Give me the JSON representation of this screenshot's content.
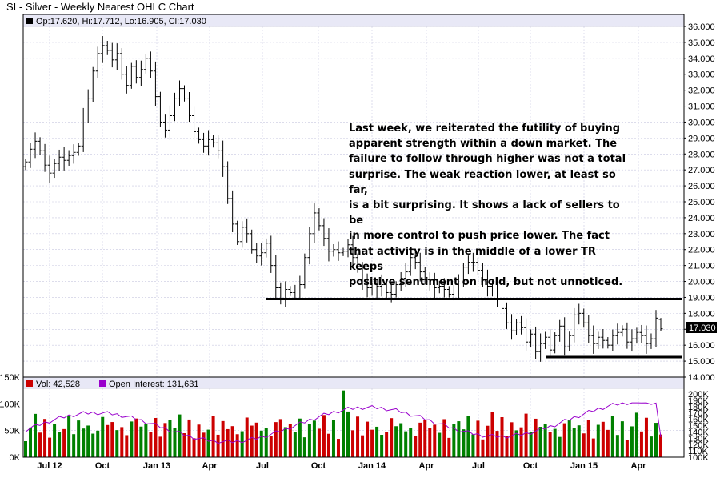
{
  "title": "SI - Silver - Weekly Nearest OHLC Chart",
  "price_legend": "Op:17.620, Hi:17.712, Lo:16.905, Cl:17.030",
  "last_price_label": "17.030",
  "volume_legend": "Vol: 42,528",
  "oi_legend": "Open Interest: 131,631",
  "annotation": "Last week, we reiterated the futility of buying\napparent strength within a down market.  The\nfailure to follow through higher was not a total\nsurprise.  The weak reaction lower, at least so far,\nis a bit surprising.  It shows a lack of sellers to be\nin more control to push price lower.  The fact\nthat activity is in the middle of a lower TR keeps\npositive sentiment on hold, but not unnoticed.",
  "colors": {
    "up_volume": "#008000",
    "down_volume": "#cc0000",
    "open_interest": "#9900cc",
    "price_bar": "#000000",
    "grid": "#c8c8e0"
  },
  "chart_data": [
    {
      "type": "ohlc",
      "name": "SI - Silver - Weekly Nearest OHLC Chart",
      "x_tick_labels": [
        "Jul 12",
        "Oct",
        "Jan 13",
        "Apr",
        "Jul",
        "Oct",
        "Jan 14",
        "Apr",
        "Jul",
        "Oct",
        "Jan 15",
        "Apr"
      ],
      "y_ticks": [
        14,
        15,
        16,
        17,
        18,
        19,
        20,
        21,
        22,
        23,
        24,
        25,
        26,
        27,
        28,
        29,
        30,
        31,
        32,
        33,
        34,
        35,
        36
      ],
      "ylim": [
        14,
        36
      ],
      "annotated_levels": [
        18.7,
        15.2
      ],
      "last": {
        "open": 17.62,
        "high": 17.712,
        "low": 16.905,
        "close": 17.03
      },
      "approx_weekly_closes": [
        27.5,
        28.3,
        28.8,
        28.2,
        27.3,
        26.8,
        27.4,
        27.8,
        27.6,
        27.9,
        28.1,
        28.5,
        30.5,
        31.5,
        33.2,
        34.3,
        34.8,
        34.5,
        33.9,
        34.3,
        33.0,
        32.3,
        33.5,
        32.8,
        33.3,
        34.0,
        33.2,
        31.6,
        30.0,
        29.5,
        30.4,
        31.5,
        32.1,
        31.5,
        30.4,
        29.4,
        28.9,
        28.5,
        28.9,
        28.7,
        28.2,
        27.2,
        25.2,
        23.6,
        22.5,
        23.4,
        23.0,
        22.0,
        21.6,
        21.8,
        22.4,
        21.0,
        19.6,
        18.9,
        19.5,
        19.3,
        19.4,
        19.8,
        21.5,
        23.0,
        24.3,
        23.5,
        22.7,
        21.9,
        22.0,
        21.8,
        21.9,
        22.3,
        21.5,
        20.8,
        19.9,
        19.6,
        19.4,
        19.7,
        19.8,
        19.3,
        19.2,
        19.8,
        20.2,
        20.6,
        21.5,
        21.2,
        20.6,
        20.1,
        19.9,
        19.6,
        19.7,
        19.5,
        19.2,
        19.4,
        19.9,
        20.9,
        21.2,
        21.2,
        20.7,
        20.1,
        19.7,
        19.4,
        18.9,
        18.3,
        17.4,
        16.9,
        17.4,
        17.1,
        16.2,
        16.7,
        15.6,
        16.1,
        16.5,
        15.7,
        16.6,
        17.2,
        15.9,
        16.6,
        17.9,
        18.0,
        17.4,
        16.6,
        16.1,
        16.5,
        16.3,
        16.0,
        16.6,
        16.8,
        17.0,
        16.2,
        16.4,
        16.8,
        16.6,
        16.1,
        16.4,
        17.7,
        17.03
      ],
      "volume_axis": {
        "ticks": [
          "0K",
          "50K",
          "100K",
          "150K"
        ],
        "ylim": [
          0,
          150000
        ]
      },
      "open_interest_axis": {
        "ticks": [
          "100K",
          "120K",
          "140K",
          "160K",
          "180K",
          "200K"
        ],
        "ylim": [
          100000,
          200000
        ]
      },
      "last_volume": 42528,
      "last_open_interest": 131631
    }
  ]
}
